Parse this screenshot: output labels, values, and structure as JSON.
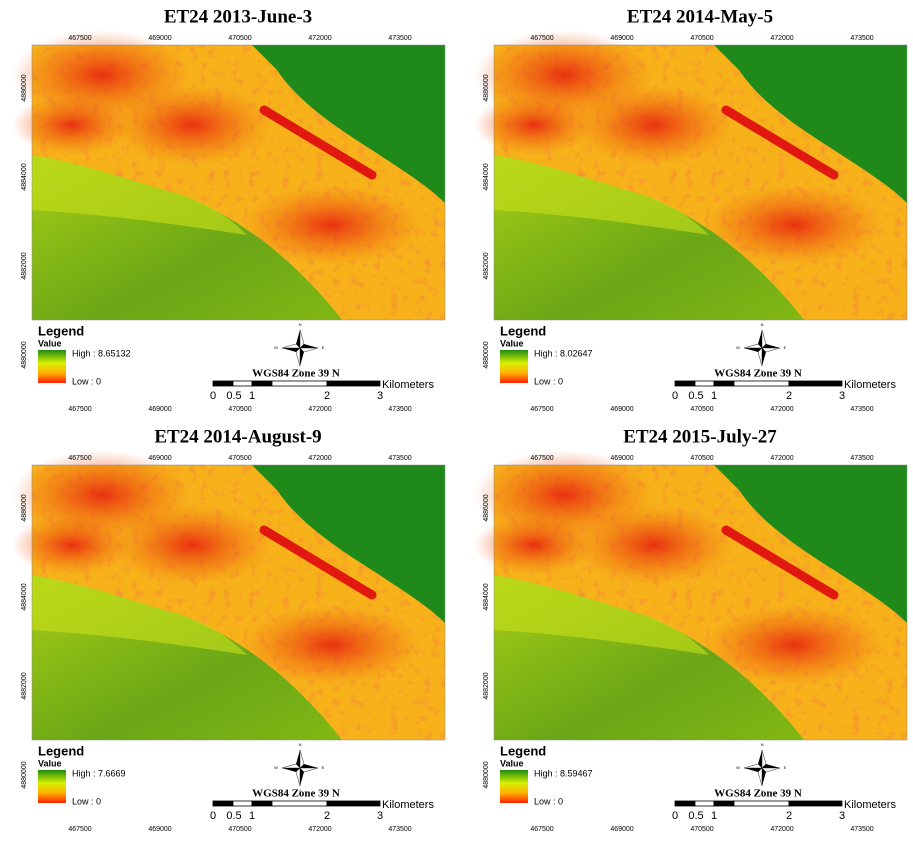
{
  "panels": [
    {
      "title": "ET24  2013-June-3",
      "high": "High : 8.65132",
      "low": "Low : 0"
    },
    {
      "title": "ET24  2014-May-5",
      "high": "High : 8.02647",
      "low": "Low : 0"
    },
    {
      "title": "ET24  2014-August-9",
      "high": "High : 7.6669",
      "low": "Low : 0"
    },
    {
      "title": "ET24  2015-July-27",
      "high": "High : 8.59467",
      "low": "Low : 0"
    }
  ],
  "easting_labels": [
    "467500",
    "469000",
    "470500",
    "472000",
    "473500"
  ],
  "northing_labels": [
    "4886000",
    "4884000",
    "4882000",
    "4880000"
  ],
  "legend_heading": "Legend",
  "value_label": "Value",
  "crs": "WGS84 Zone 39 N",
  "scale_labels": [
    "0",
    "0.5",
    "1",
    "2",
    "3"
  ],
  "scale_units": "Kilometers",
  "compass": [
    "N",
    "S",
    "E",
    "W"
  ]
}
